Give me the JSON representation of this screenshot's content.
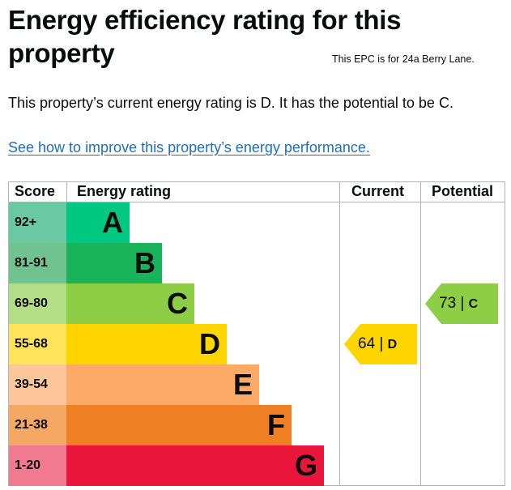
{
  "heading": "Energy efficiency rating for this property",
  "address_note": "This EPC is for 24a Berry Lane.",
  "summary": "This property’s current energy rating is D. It has the potential to be C.",
  "improve_link": "See how to improve this property’s energy performance.",
  "table": {
    "headers": {
      "score": "Score",
      "rating": "Energy rating",
      "current": "Current",
      "potential": "Potential"
    },
    "bands": [
      {
        "score": "92+",
        "letter": "A",
        "band_color": "#00c781",
        "score_color": "#6ac9a3"
      },
      {
        "score": "81-91",
        "letter": "B",
        "band_color": "#19b459",
        "score_color": "#70c28f"
      },
      {
        "score": "69-80",
        "letter": "C",
        "band_color": "#8dce46",
        "score_color": "#b4dd88"
      },
      {
        "score": "55-68",
        "letter": "D",
        "band_color": "#ffd500",
        "score_color": "#ffe459"
      },
      {
        "score": "39-54",
        "letter": "E",
        "band_color": "#fcaa65",
        "score_color": "#fdc79b"
      },
      {
        "score": "21-38",
        "letter": "F",
        "band_color": "#ef8023",
        "score_color": "#f4a864"
      },
      {
        "score": "1-20",
        "letter": "G",
        "band_color": "#e9153b",
        "score_color": "#f17a90"
      }
    ],
    "current": {
      "value": "64",
      "separator": "|",
      "letter": "D",
      "color": "#ffd500"
    },
    "potential": {
      "value": "73",
      "separator": "|",
      "letter": "C",
      "color": "#8dce46"
    }
  }
}
